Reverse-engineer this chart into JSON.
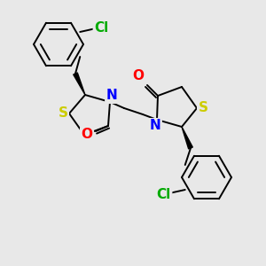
{
  "bg_color": "#e8e8e8",
  "atom_colors": {
    "S": "#cccc00",
    "N": "#0000ff",
    "O": "#ff0000",
    "Cl": "#00aa00",
    "C": "#000000"
  },
  "bond_color": "#000000",
  "figsize": [
    3.0,
    3.0
  ],
  "dpi": 100,
  "lw": 1.4,
  "fs": 11
}
